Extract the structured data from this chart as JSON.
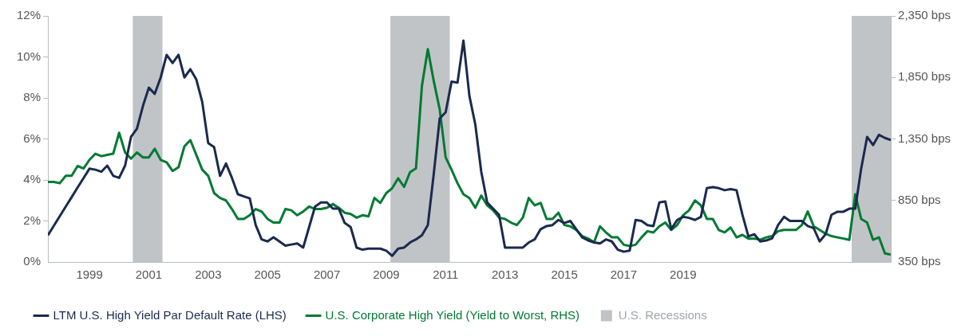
{
  "chart_data": {
    "type": "line",
    "x": [
      1997.6,
      1997.8,
      1998,
      1998.2,
      1998.4,
      1998.6,
      1998.8,
      1999,
      1999.2,
      1999.4,
      1999.6,
      1999.8,
      2000,
      2000.2,
      2000.4,
      2000.6,
      2000.8,
      2001,
      2001.2,
      2001.4,
      2001.6,
      2001.8,
      2002,
      2002.2,
      2002.4,
      2002.6,
      2002.8,
      2003,
      2003.2,
      2003.4,
      2003.6,
      2003.8,
      2004,
      2004.2,
      2004.4,
      2004.6,
      2004.8,
      2005,
      2005.2,
      2005.4,
      2005.6,
      2005.8,
      2006,
      2006.2,
      2006.4,
      2006.6,
      2006.8,
      2007,
      2007.2,
      2007.4,
      2007.6,
      2007.8,
      2008,
      2008.2,
      2008.4,
      2008.6,
      2008.8,
      2009,
      2009.2,
      2009.4,
      2009.6,
      2009.8,
      2010,
      2010.2,
      2010.4,
      2010.6,
      2010.8,
      2011,
      2011.2,
      2011.4,
      2011.6,
      2011.8,
      2012,
      2012.2,
      2012.4,
      2012.6,
      2012.8,
      2013,
      2013.2,
      2013.4,
      2013.6,
      2013.8,
      2014,
      2014.2,
      2014.4,
      2014.6,
      2014.8,
      2015,
      2015.2,
      2015.4,
      2015.6,
      2015.8,
      2016,
      2016.2,
      2016.4,
      2016.6,
      2016.8,
      2017,
      2017.2,
      2017.4,
      2017.6,
      2017.8,
      2018,
      2018.2,
      2018.4,
      2018.6,
      2018.8,
      2019,
      2019.2,
      2019.4,
      2019.6,
      2019.8,
      2020,
      2020.2,
      2020.4,
      2020.6,
      2020.8,
      2021,
      2021.2,
      2021.4,
      2021.6,
      2021.8,
      2022,
      2022.2,
      2022.4,
      2022.6,
      2022.8,
      2023,
      2023.2,
      2023.4,
      2023.6,
      2023.8,
      2024,
      2024.2,
      2024.4,
      2024.6,
      2024.8,
      2025,
      2025.2,
      2025.4,
      2025.6,
      2025.8,
      2026
    ],
    "series": [
      {
        "name": "LTM U.S. High Yield Par Default Rate (LHS)",
        "axis": "y",
        "color": "#1b2a4e",
        "values": [
          1.3,
          1.77,
          2.23,
          2.7,
          3.16,
          3.63,
          4.09,
          4.55,
          4.5,
          4.4,
          4.7,
          4.2,
          4.1,
          4.7,
          6.1,
          6.5,
          7.6,
          8.5,
          8.2,
          9.0,
          10.1,
          9.7,
          10.1,
          9.0,
          9.4,
          8.9,
          7.8,
          5.8,
          5.6,
          4.2,
          4.8,
          4.1,
          3.3,
          3.2,
          3.1,
          1.8,
          1.1,
          1.0,
          1.2,
          1.0,
          0.8,
          0.85,
          0.9,
          0.7,
          1.7,
          2.7,
          2.9,
          2.9,
          2.6,
          2.6,
          1.9,
          1.7,
          0.7,
          0.6,
          0.65,
          0.65,
          0.65,
          0.55,
          0.3,
          0.65,
          0.7,
          0.95,
          1.1,
          1.3,
          1.8,
          4.3,
          7.0,
          7.3,
          8.8,
          8.75,
          10.8,
          8.1,
          6.7,
          4.4,
          2.9,
          2.6,
          2.3,
          0.7,
          0.7,
          0.7,
          0.7,
          0.95,
          1.1,
          1.6,
          1.75,
          1.8,
          2.05,
          1.9,
          2.0,
          1.6,
          1.2,
          1.05,
          0.95,
          0.9,
          1.1,
          1.0,
          0.6,
          0.5,
          0.55,
          2.05,
          2.0,
          1.8,
          1.75,
          2.9,
          2.95,
          1.6,
          2.05,
          2.2,
          2.15,
          2.05,
          2.2,
          3.6,
          3.65,
          3.6,
          3.5,
          3.55,
          3.5,
          2.3,
          1.25,
          1.35,
          1.0,
          1.05,
          1.15,
          1.8,
          2.2,
          2.0,
          2.0,
          2.0,
          1.75,
          1.65,
          1.0,
          1.35,
          2.3,
          2.45,
          2.45,
          2.6,
          2.6,
          4.55,
          6.1,
          5.7,
          6.2,
          6.05,
          5.95
        ]
      },
      {
        "name": "U.S. Corporate High Yield (Yield to Worst, RHS)",
        "axis": "y2",
        "color": "#007a33",
        "values": [
          1000,
          1000,
          990,
          1050,
          1050,
          1130,
          1110,
          1180,
          1230,
          1210,
          1220,
          1230,
          1400,
          1240,
          1190,
          1240,
          1200,
          1200,
          1270,
          1180,
          1160,
          1090,
          1120,
          1290,
          1340,
          1220,
          1100,
          1050,
          910,
          870,
          850,
          780,
          700,
          700,
          730,
          780,
          760,
          700,
          670,
          670,
          780,
          770,
          730,
          760,
          800,
          780,
          780,
          790,
          820,
          790,
          750,
          740,
          710,
          730,
          720,
          870,
          830,
          910,
          950,
          1030,
          960,
          1080,
          1110,
          1780,
          2080,
          1820,
          1590,
          1200,
          1100,
          990,
          900,
          870,
          790,
          890,
          810,
          770,
          710,
          700,
          670,
          650,
          710,
          870,
          810,
          830,
          700,
          700,
          750,
          650,
          640,
          610,
          560,
          540,
          510,
          640,
          590,
          550,
          550,
          490,
          480,
          490,
          550,
          600,
          590,
          640,
          670,
          610,
          650,
          730,
          770,
          850,
          810,
          700,
          700,
          610,
          590,
          630,
          550,
          570,
          540,
          540,
          530,
          550,
          560,
          600,
          610,
          610,
          610,
          650,
          760,
          640,
          610,
          580,
          560,
          550,
          540,
          530,
          900,
          700,
          670,
          530,
          550,
          420,
          410
        ]
      }
    ],
    "bands": [
      {
        "axis": "x",
        "from": 2000.46,
        "to": 2001.46,
        "label": "U.S. Recessions",
        "color": "#c1c4c7"
      },
      {
        "axis": "x",
        "from": 2009.14,
        "to": 2011.14,
        "color": "#c1c4c7"
      },
      {
        "axis": "x",
        "from": 2024.68,
        "to": 2026,
        "color": "#c1c4c7"
      }
    ],
    "xlim": [
      1997.6,
      2026
    ],
    "xticks": [
      1999,
      2001,
      2003,
      2005,
      2007,
      2009,
      2011,
      2013,
      2015,
      2017,
      2019
    ],
    "ylim": [
      0,
      12
    ],
    "yticks": [
      {
        "value": 0,
        "label": "0%"
      },
      {
        "value": 2,
        "label": "2%"
      },
      {
        "value": 4,
        "label": "4%"
      },
      {
        "value": 6,
        "label": "6%"
      },
      {
        "value": 8,
        "label": "8%"
      },
      {
        "value": 10,
        "label": "10%"
      },
      {
        "value": 12,
        "label": "12%"
      }
    ],
    "y2lim": [
      350,
      2350
    ],
    "y2ticks": [
      {
        "value": 350,
        "label": "350 bps"
      },
      {
        "value": 850,
        "label": "850 bps"
      },
      {
        "value": 1350,
        "label": "1,350 bps"
      },
      {
        "value": 1850,
        "label": "1,850 bps"
      },
      {
        "value": 2350,
        "label": "2,350 bps"
      }
    ],
    "grid": false,
    "legend": "bottom",
    "marker": "none",
    "line_style": "solid"
  }
}
